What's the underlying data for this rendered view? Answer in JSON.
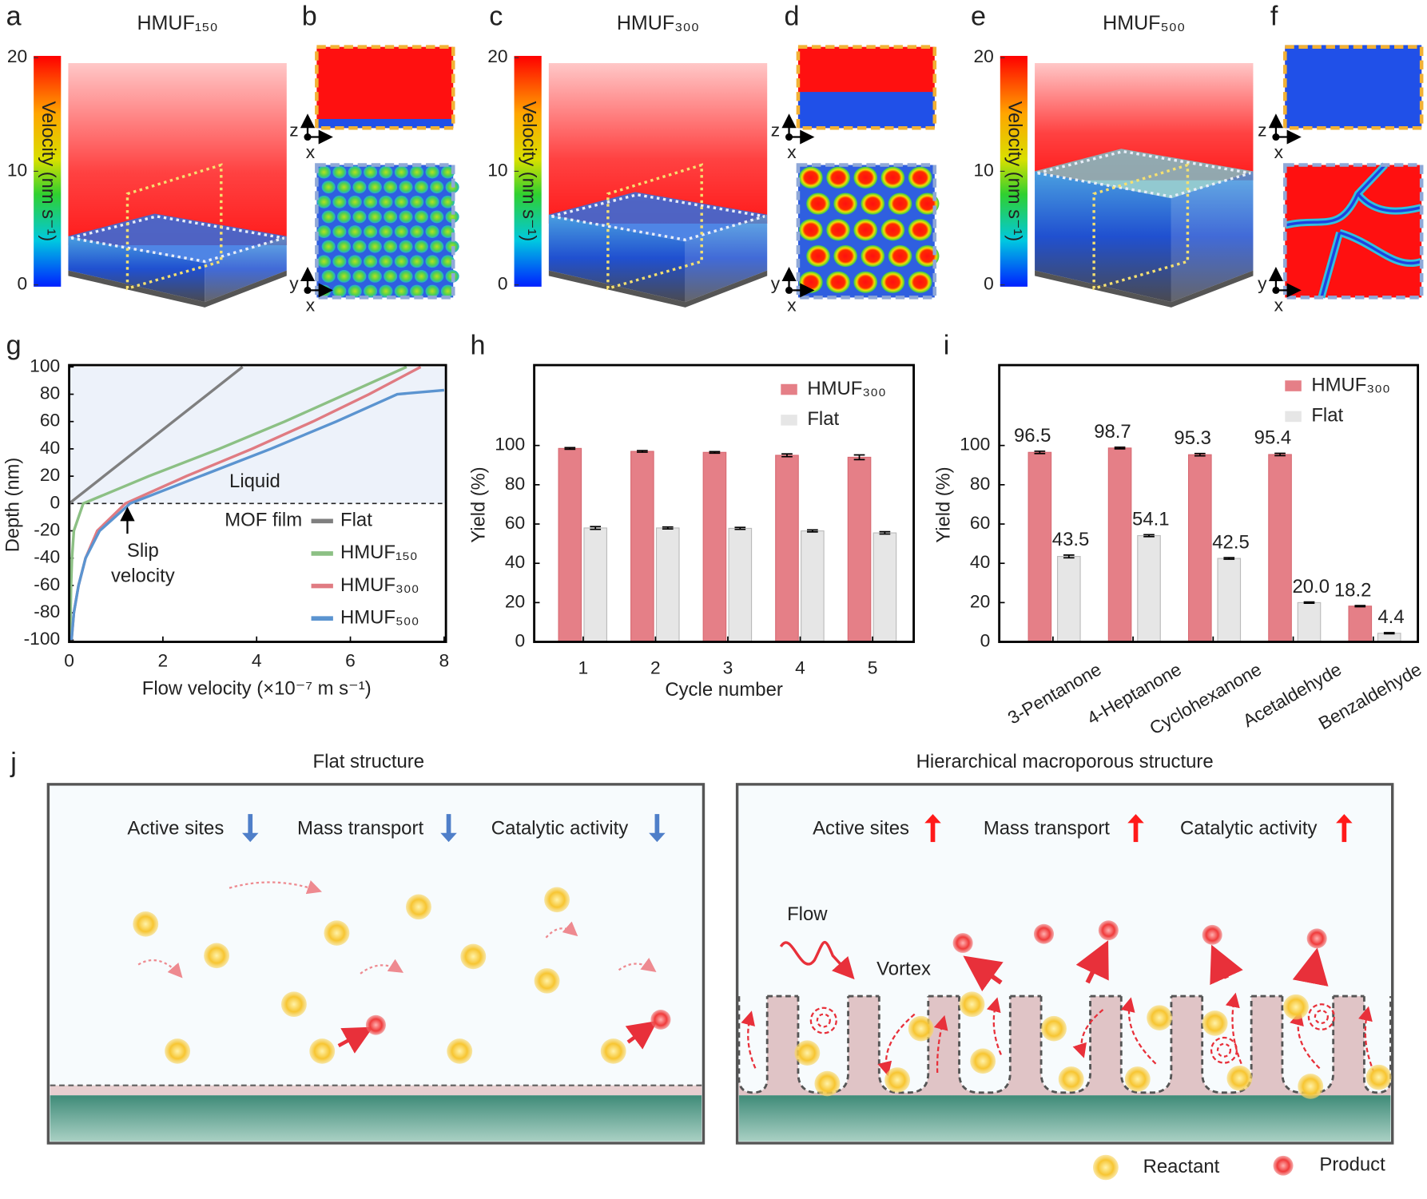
{
  "panel_labels": [
    "a",
    "b",
    "c",
    "d",
    "e",
    "f",
    "g",
    "h",
    "i",
    "j"
  ],
  "simulations": {
    "panels": [
      {
        "label": "HMUF₁₅₀",
        "color": "#5b8c3a"
      },
      {
        "label": "HMUF₃₀₀",
        "color": "#ff1a1a"
      },
      {
        "label": "HMUF₅₀₀",
        "color": "#4f7fc9"
      }
    ],
    "colorbar_label": "Velocity (nm s⁻¹)",
    "colorbar_ticks": [
      0,
      10,
      20
    ],
    "axes": {
      "side": [
        "z",
        "x"
      ],
      "top": [
        "y",
        "x"
      ]
    }
  },
  "chart_data": [
    {
      "type": "line",
      "xlabel": "Flow velocity (×10⁻⁷ m s⁻¹)",
      "ylabel": "Depth (nm)",
      "xlim": [
        0,
        8
      ],
      "ylim": [
        -100,
        100
      ],
      "xticks": [
        0,
        2,
        4,
        6,
        8
      ],
      "yticks": [
        -100,
        -80,
        -60,
        -40,
        -20,
        0,
        20,
        40,
        60,
        80,
        100
      ],
      "annotations": {
        "liquid": "Liquid",
        "film": "MOF film",
        "slip": [
          "Slip",
          "velocity"
        ]
      },
      "legend": "lower right",
      "series": [
        {
          "name": "Flat",
          "color": "#7f7f7f",
          "x": [
            0,
            0,
            0,
            0,
            0,
            0,
            0.74,
            1.48,
            2.22,
            2.96,
            3.7
          ],
          "values": [
            -100,
            -80,
            -60,
            -40,
            -20,
            0,
            20,
            40,
            60,
            80,
            100
          ]
        },
        {
          "name": "HMUF₁₅₀",
          "color": "#8cc084",
          "x": [
            0.02,
            0.03,
            0.04,
            0.06,
            0.1,
            0.3,
            1.7,
            3.2,
            4.6,
            5.9,
            7.2
          ],
          "values": [
            -100,
            -80,
            -60,
            -40,
            -20,
            0,
            20,
            40,
            60,
            80,
            100
          ]
        },
        {
          "name": "HMUF₃₀₀",
          "color": "#e07b82",
          "x": [
            0.05,
            0.1,
            0.2,
            0.35,
            0.6,
            1.2,
            2.5,
            3.9,
            5.2,
            6.4,
            7.5
          ],
          "values": [
            -100,
            -80,
            -60,
            -40,
            -20,
            0,
            20,
            40,
            60,
            80,
            100
          ]
        },
        {
          "name": "HMUF₅₀₀",
          "color": "#5b94d0",
          "x": [
            0.05,
            0.1,
            0.2,
            0.35,
            0.65,
            1.3,
            2.8,
            4.3,
            5.7,
            7.0,
            8.0
          ],
          "values": [
            -100,
            -80,
            -60,
            -40,
            -20,
            0,
            20,
            40,
            60,
            80,
            83
          ]
        }
      ]
    },
    {
      "type": "bar",
      "xlabel": "Cycle number",
      "ylabel": "Yield (%)",
      "categories": [
        "1",
        "2",
        "3",
        "4",
        "5"
      ],
      "ylim": [
        0,
        140
      ],
      "yticks": [
        0,
        20,
        40,
        60,
        80,
        100
      ],
      "legend": "upper right",
      "series": [
        {
          "name": "HMUF₃₀₀",
          "color": "#e57f87",
          "values": [
            98.5,
            97,
            96.5,
            95,
            94
          ],
          "errors": [
            0.4,
            0.4,
            0.4,
            0.7,
            1.2
          ]
        },
        {
          "name": "Flat",
          "color": "#e6e6e6",
          "values": [
            58,
            58,
            57.8,
            56.5,
            55.5
          ],
          "errors": [
            0.7,
            0.5,
            0.5,
            0.5,
            0.6
          ]
        }
      ]
    },
    {
      "type": "bar",
      "ylabel": "Yield (%)",
      "categories": [
        "3-Pentanone",
        "4-Heptanone",
        "Cyclohexanone",
        "Acetaldehyde",
        "Benzaldehyde"
      ],
      "xtick_rotation": -30,
      "ylim": [
        0,
        140
      ],
      "yticks": [
        0,
        20,
        40,
        60,
        80,
        100
      ],
      "legend": "upper right",
      "series": [
        {
          "name": "HMUF₃₀₀",
          "color": "#e57f87",
          "values": [
            96.5,
            98.7,
            95.3,
            95.4,
            18.2
          ],
          "errors": [
            0.6,
            0.4,
            0.6,
            0.6,
            0.3
          ],
          "value_labels": [
            "96.5",
            "98.7",
            "95.3",
            "95.4",
            "18.2"
          ]
        },
        {
          "name": "Flat",
          "color": "#e6e6e6",
          "values": [
            43.5,
            54.1,
            42.5,
            20.0,
            4.4
          ],
          "errors": [
            0.7,
            0.5,
            0.4,
            0.3,
            0.3
          ],
          "value_labels": [
            "43.5",
            "54.1",
            "42.5",
            "20.0",
            "4.4"
          ]
        }
      ]
    }
  ],
  "schematic": {
    "left": {
      "title": "Flat structure",
      "items": [
        "Active sites",
        "Mass transport",
        "Catalytic activity"
      ]
    },
    "right": {
      "title": "Hierarchical macroporous structure",
      "items": [
        "Active sites",
        "Mass transport",
        "Catalytic activity"
      ],
      "flow": "Flow",
      "vortex": "Vortex"
    },
    "legend": [
      "Reactant",
      "Product"
    ]
  }
}
